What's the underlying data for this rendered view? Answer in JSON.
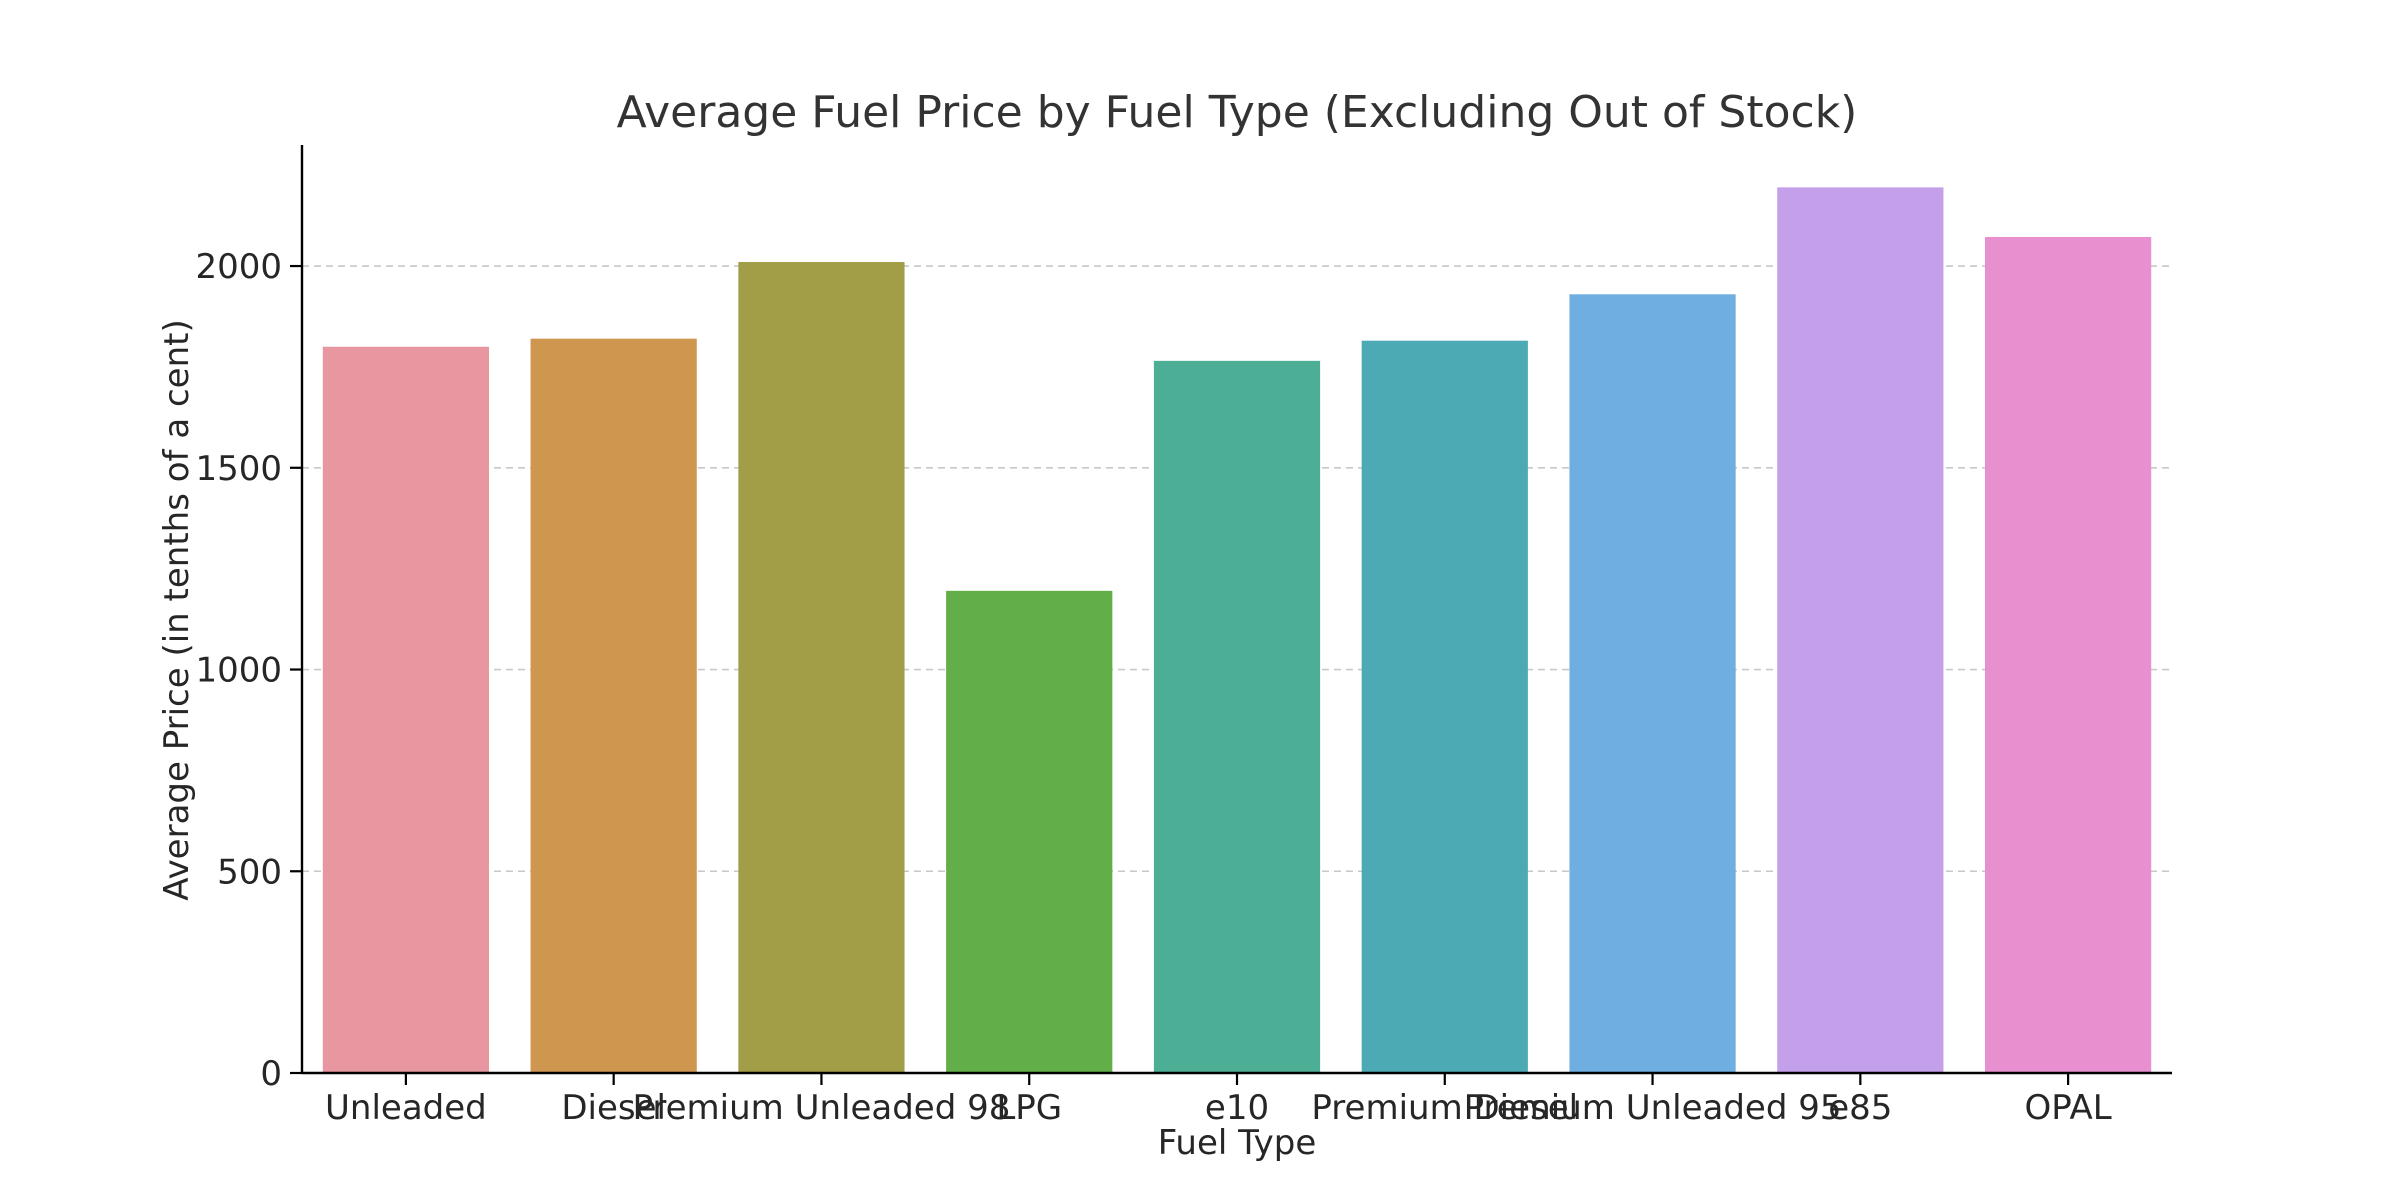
{
  "chart_data": {
    "type": "bar",
    "title": "Average Fuel Price by Fuel Type (Excluding Out of Stock)",
    "xlabel": "Fuel Type",
    "ylabel": "Average Price (in tenths of a cent)",
    "categories": [
      "Unleaded",
      "Diesel",
      "Premium Unleaded 98",
      "LPG",
      "e10",
      "Premium Diesel",
      "Premium Unleaded 95",
      "e85",
      "OPAL"
    ],
    "values": [
      1800,
      1820,
      2010,
      1195,
      1765,
      1815,
      1930,
      2195,
      2072
    ],
    "colors": [
      "#e8969f",
      "#cf9650",
      "#a29e48",
      "#62ae49",
      "#4cae95",
      "#4caab4",
      "#6eaee1",
      "#c4a0ea",
      "#e890cf"
    ],
    "ylim": [
      0,
      2300
    ],
    "yticks": [
      0,
      500,
      1000,
      1500,
      2000
    ],
    "grid": true,
    "grid_axis": "y",
    "legend": false
  }
}
